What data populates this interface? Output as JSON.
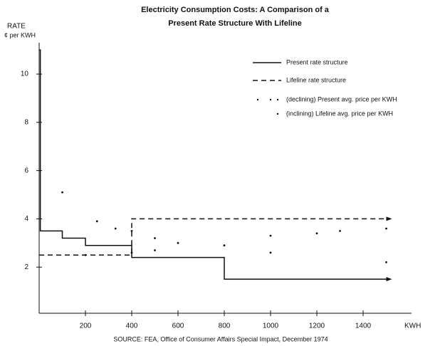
{
  "chart_data": {
    "type": "line",
    "title": "Electricity Consumption Costs: A Comparison of a",
    "subtitle": "Present Rate Structure With Lifeline",
    "y_label": "RATE",
    "y_unit": "¢ per KWH",
    "x_label": "KWH",
    "source": "SOURCE: FEA, Office of Consumer Affairs Special Impact, December 1974",
    "xlim": [
      0,
      1600
    ],
    "ylim": [
      0,
      11.3
    ],
    "xticks": [
      200,
      400,
      600,
      800,
      1000,
      1200,
      1400
    ],
    "yticks": [
      2,
      4,
      6,
      8,
      10
    ],
    "series": [
      {
        "name": "Present rate structure",
        "color": "#111111",
        "style": "solid",
        "x": [
          0,
          5,
          5,
          100,
          100,
          200,
          200,
          400,
          400,
          800,
          800,
          1500
        ],
        "values": [
          11,
          11,
          3.5,
          3.5,
          3.2,
          3.2,
          2.9,
          2.9,
          2.4,
          2.4,
          1.5,
          1.5
        ]
      },
      {
        "name": "Lifeline rate structure",
        "color": "#111111",
        "style": "dashed",
        "x": [
          0,
          400,
          400,
          1500
        ],
        "values": [
          2.5,
          2.5,
          4,
          4
        ]
      },
      {
        "name": "(declining) Present avg. price per KWH",
        "color": "#111111",
        "style": "dots",
        "x": [
          100,
          250,
          330,
          400,
          500,
          600,
          1000,
          1500
        ],
        "values": [
          5.1,
          3.9,
          3.6,
          3.5,
          3.2,
          3.0,
          2.6,
          2.2
        ]
      },
      {
        "name": "(inclining) Lifeline avg. price per KWH",
        "color": "#111111",
        "style": "dots",
        "x": [
          200,
          400,
          500,
          800,
          1000,
          1200,
          1300,
          1500
        ],
        "values": [
          2.5,
          2.6,
          2.7,
          2.9,
          3.3,
          3.4,
          3.5,
          3.6
        ]
      }
    ]
  }
}
